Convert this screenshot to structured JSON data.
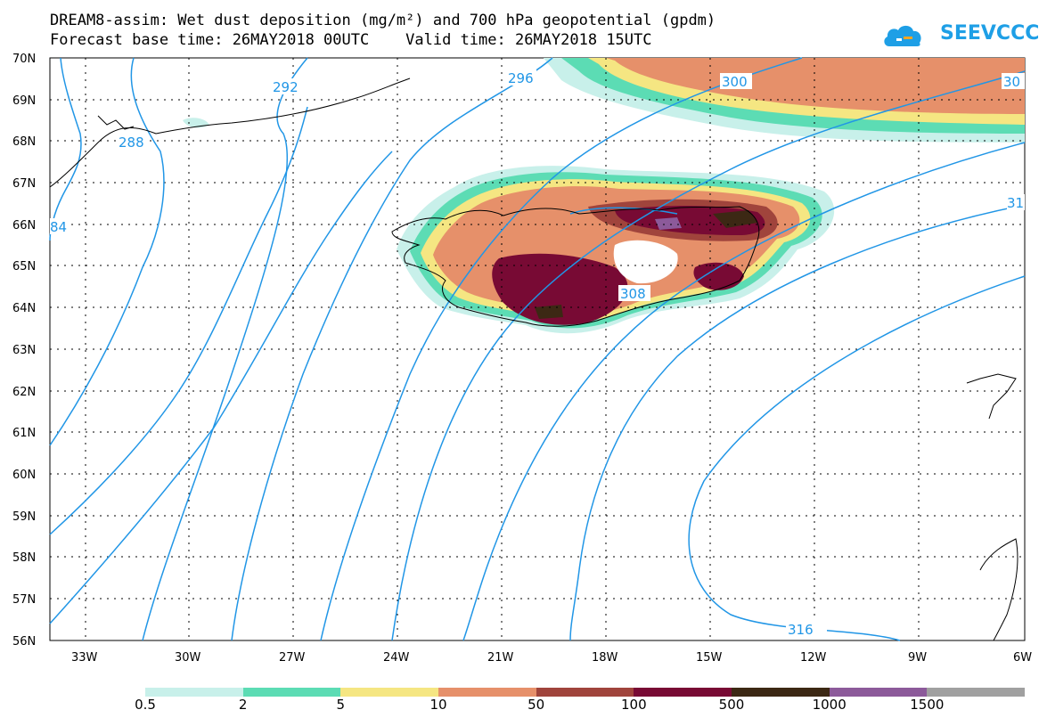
{
  "title_line1": "DREAM8-assim: Wet dust deposition (mg/m²) and 700 hPa geopotential (gpdm)",
  "title_line2": "Forecast base time: 26MAY2018 00UTC    Valid time: 26MAY2018 15UTC",
  "logo_text": "SEEVCCC",
  "lat_labels": [
    "70N",
    "69N",
    "68N",
    "67N",
    "66N",
    "65N",
    "64N",
    "63N",
    "62N",
    "61N",
    "60N",
    "59N",
    "58N",
    "57N",
    "56N"
  ],
  "lon_labels": [
    "33W",
    "30W",
    "27W",
    "24W",
    "21W",
    "18W",
    "15W",
    "12W",
    "9W",
    "6W"
  ],
  "contour_labels": [
    "292",
    "296",
    "300",
    "30",
    "288",
    "84",
    "31",
    "308",
    "316"
  ],
  "legend": {
    "labels": [
      "0.5",
      "2",
      "5",
      "10",
      "50",
      "100",
      "500",
      "1000",
      "1500"
    ],
    "colors": [
      "#c8f0ea",
      "#5cdcb4",
      "#f5e682",
      "#e6906a",
      "#a0443c",
      "#780a34",
      "#3c2814",
      "#8c5a9a",
      "#a0a0a0"
    ]
  },
  "colors": {
    "contour": "#2196e6",
    "coast": "#000000"
  }
}
